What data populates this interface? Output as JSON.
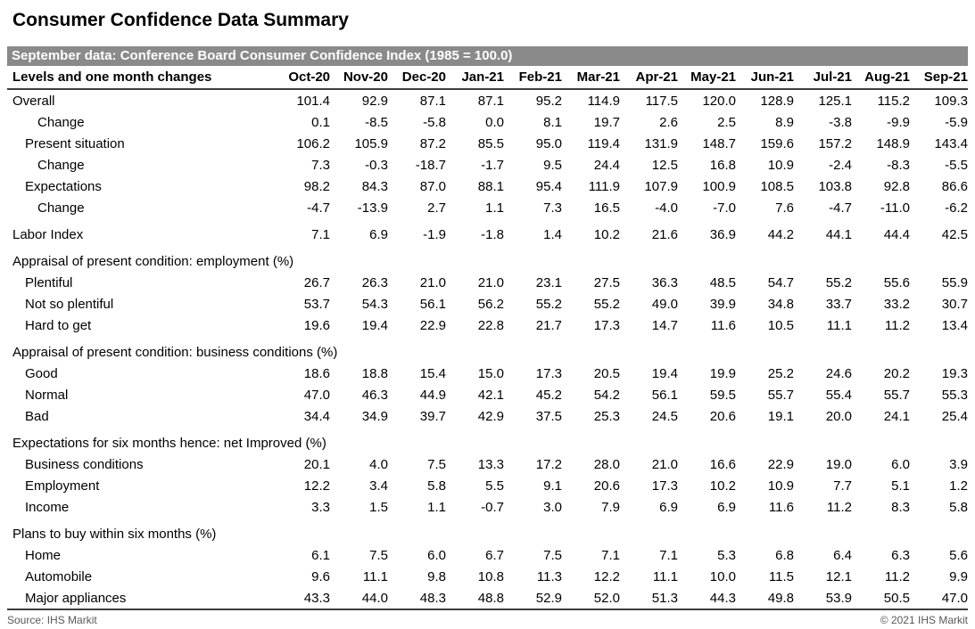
{
  "chart_data": {
    "type": "table",
    "title": "Consumer Confidence Data Summary",
    "banner": "September data: Conference Board Consumer Confidence Index (1985 = 100.0)",
    "row_header_label": "Levels and one month changes",
    "columns": [
      "Oct-20",
      "Nov-20",
      "Dec-20",
      "Jan-21",
      "Feb-21",
      "Mar-21",
      "Apr-21",
      "May-21",
      "Jun-21",
      "Jul-21",
      "Aug-21",
      "Sep-21"
    ],
    "rows": [
      {
        "type": "data",
        "label": "Overall",
        "indent": 0,
        "values": [
          "101.4",
          "92.9",
          "87.1",
          "87.1",
          "95.2",
          "114.9",
          "117.5",
          "120.0",
          "128.9",
          "125.1",
          "115.2",
          "109.3"
        ]
      },
      {
        "type": "data",
        "label": "Change",
        "indent": 2,
        "values": [
          "0.1",
          "-8.5",
          "-5.8",
          "0.0",
          "8.1",
          "19.7",
          "2.6",
          "2.5",
          "8.9",
          "-3.8",
          "-9.9",
          "-5.9"
        ]
      },
      {
        "type": "data",
        "label": "Present situation",
        "indent": 1,
        "values": [
          "106.2",
          "105.9",
          "87.2",
          "85.5",
          "95.0",
          "119.4",
          "131.9",
          "148.7",
          "159.6",
          "157.2",
          "148.9",
          "143.4"
        ]
      },
      {
        "type": "data",
        "label": "Change",
        "indent": 2,
        "values": [
          "7.3",
          "-0.3",
          "-18.7",
          "-1.7",
          "9.5",
          "24.4",
          "12.5",
          "16.8",
          "10.9",
          "-2.4",
          "-8.3",
          "-5.5"
        ]
      },
      {
        "type": "data",
        "label": "Expectations",
        "indent": 1,
        "values": [
          "98.2",
          "84.3",
          "87.0",
          "88.1",
          "95.4",
          "111.9",
          "107.9",
          "100.9",
          "108.5",
          "103.8",
          "92.8",
          "86.6"
        ]
      },
      {
        "type": "data",
        "label": "Change",
        "indent": 2,
        "values": [
          "-4.7",
          "-13.9",
          "2.7",
          "1.1",
          "7.3",
          "16.5",
          "-4.0",
          "-7.0",
          "7.6",
          "-4.7",
          "-11.0",
          "-6.2"
        ]
      },
      {
        "type": "spacer"
      },
      {
        "type": "data",
        "label": "Labor Index",
        "indent": 0,
        "values": [
          "7.1",
          "6.9",
          "-1.9",
          "-1.8",
          "1.4",
          "10.2",
          "21.6",
          "36.9",
          "44.2",
          "44.1",
          "44.4",
          "42.5"
        ]
      },
      {
        "type": "spacer"
      },
      {
        "type": "section",
        "label": "Appraisal of present condition: employment (%)"
      },
      {
        "type": "data",
        "label": "Plentiful",
        "indent": 1,
        "values": [
          "26.7",
          "26.3",
          "21.0",
          "21.0",
          "23.1",
          "27.5",
          "36.3",
          "48.5",
          "54.7",
          "55.2",
          "55.6",
          "55.9"
        ]
      },
      {
        "type": "data",
        "label": "Not so plentiful",
        "indent": 1,
        "values": [
          "53.7",
          "54.3",
          "56.1",
          "56.2",
          "55.2",
          "55.2",
          "49.0",
          "39.9",
          "34.8",
          "33.7",
          "33.2",
          "30.7"
        ]
      },
      {
        "type": "data",
        "label": "Hard to get",
        "indent": 1,
        "values": [
          "19.6",
          "19.4",
          "22.9",
          "22.8",
          "21.7",
          "17.3",
          "14.7",
          "11.6",
          "10.5",
          "11.1",
          "11.2",
          "13.4"
        ]
      },
      {
        "type": "spacer"
      },
      {
        "type": "section",
        "label": "Appraisal of present condition: business conditions (%)"
      },
      {
        "type": "data",
        "label": "Good",
        "indent": 1,
        "values": [
          "18.6",
          "18.8",
          "15.4",
          "15.0",
          "17.3",
          "20.5",
          "19.4",
          "19.9",
          "25.2",
          "24.6",
          "20.2",
          "19.3"
        ]
      },
      {
        "type": "data",
        "label": "Normal",
        "indent": 1,
        "values": [
          "47.0",
          "46.3",
          "44.9",
          "42.1",
          "45.2",
          "54.2",
          "56.1",
          "59.5",
          "55.7",
          "55.4",
          "55.7",
          "55.3"
        ]
      },
      {
        "type": "data",
        "label": "Bad",
        "indent": 1,
        "values": [
          "34.4",
          "34.9",
          "39.7",
          "42.9",
          "37.5",
          "25.3",
          "24.5",
          "20.6",
          "19.1",
          "20.0",
          "24.1",
          "25.4"
        ]
      },
      {
        "type": "spacer"
      },
      {
        "type": "section",
        "label": "Expectations for six months hence: net Improved (%)"
      },
      {
        "type": "data",
        "label": "Business conditions",
        "indent": 1,
        "values": [
          "20.1",
          "4.0",
          "7.5",
          "13.3",
          "17.2",
          "28.0",
          "21.0",
          "16.6",
          "22.9",
          "19.0",
          "6.0",
          "3.9"
        ]
      },
      {
        "type": "data",
        "label": "Employment",
        "indent": 1,
        "values": [
          "12.2",
          "3.4",
          "5.8",
          "5.5",
          "9.1",
          "20.6",
          "17.3",
          "10.2",
          "10.9",
          "7.7",
          "5.1",
          "1.2"
        ]
      },
      {
        "type": "data",
        "label": "Income",
        "indent": 1,
        "values": [
          "3.3",
          "1.5",
          "1.1",
          "-0.7",
          "3.0",
          "7.9",
          "6.9",
          "6.9",
          "11.6",
          "11.2",
          "8.3",
          "5.8"
        ]
      },
      {
        "type": "spacer"
      },
      {
        "type": "section",
        "label": "Plans to buy within six months (%)"
      },
      {
        "type": "data",
        "label": "Home",
        "indent": 1,
        "values": [
          "6.1",
          "7.5",
          "6.0",
          "6.7",
          "7.5",
          "7.1",
          "7.1",
          "5.3",
          "6.8",
          "6.4",
          "6.3",
          "5.6"
        ]
      },
      {
        "type": "data",
        "label": "Automobile",
        "indent": 1,
        "values": [
          "9.6",
          "11.1",
          "9.8",
          "10.8",
          "11.3",
          "12.2",
          "11.1",
          "10.0",
          "11.5",
          "12.1",
          "11.2",
          "9.9"
        ]
      },
      {
        "type": "data",
        "label": "Major appliances",
        "indent": 1,
        "values": [
          "43.3",
          "44.0",
          "48.3",
          "48.8",
          "52.9",
          "52.0",
          "51.3",
          "44.3",
          "49.8",
          "53.9",
          "50.5",
          "47.0"
        ]
      }
    ],
    "source": "Source: IHS Markit",
    "copyright": "© 2021 IHS Markit",
    "colors": {
      "banner_bg": "#8a8a8a",
      "banner_text": "#ffffff",
      "rule": "#3d3d3d",
      "footer_text": "#595959"
    }
  }
}
